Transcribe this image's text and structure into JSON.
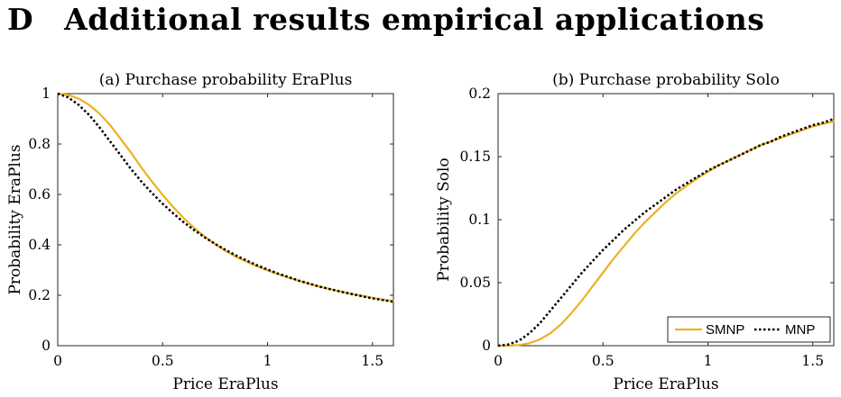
{
  "section": {
    "number": "D",
    "title": "Additional results empirical applications"
  },
  "chart_data": [
    {
      "type": "line",
      "title": "(a) Purchase probability EraPlus",
      "xlabel": "Price EraPlus",
      "ylabel": "Probability EraPlus",
      "xlim": [
        0,
        1.6
      ],
      "ylim": [
        0,
        1
      ],
      "xticks": [
        0,
        0.5,
        1,
        1.5
      ],
      "xtick_labels": [
        "0",
        "0.5",
        "1",
        "1.5"
      ],
      "yticks": [
        0,
        0.2,
        0.4,
        0.6,
        0.8,
        1
      ],
      "ytick_labels": [
        "0",
        "0.2",
        "0.4",
        "0.6",
        "0.8",
        "1"
      ],
      "grid": false,
      "series": [
        {
          "name": "SMNP",
          "color": "#EDB120",
          "style": "solid",
          "x": [
            0,
            0.05,
            0.1,
            0.15,
            0.2,
            0.25,
            0.3,
            0.35,
            0.4,
            0.45,
            0.5,
            0.55,
            0.6,
            0.65,
            0.7,
            0.75,
            0.8,
            0.85,
            0.9,
            0.95,
            1.0,
            1.05,
            1.1,
            1.15,
            1.2,
            1.25,
            1.3,
            1.35,
            1.4,
            1.45,
            1.5,
            1.55,
            1.6
          ],
          "y": [
            1.0,
            0.995,
            0.98,
            0.955,
            0.92,
            0.875,
            0.82,
            0.765,
            0.705,
            0.65,
            0.598,
            0.55,
            0.506,
            0.468,
            0.433,
            0.403,
            0.376,
            0.353,
            0.333,
            0.315,
            0.299,
            0.284,
            0.27,
            0.257,
            0.245,
            0.234,
            0.224,
            0.215,
            0.206,
            0.198,
            0.19,
            0.183,
            0.177
          ]
        },
        {
          "name": "MNP",
          "color": "#000000",
          "style": "dotted",
          "x": [
            0,
            0.05,
            0.1,
            0.15,
            0.2,
            0.25,
            0.3,
            0.35,
            0.4,
            0.45,
            0.5,
            0.55,
            0.6,
            0.65,
            0.7,
            0.75,
            0.8,
            0.85,
            0.9,
            0.95,
            1.0,
            1.05,
            1.1,
            1.15,
            1.2,
            1.25,
            1.3,
            1.35,
            1.4,
            1.45,
            1.5,
            1.55,
            1.6
          ],
          "y": [
            1.0,
            0.985,
            0.955,
            0.915,
            0.865,
            0.81,
            0.755,
            0.7,
            0.65,
            0.605,
            0.563,
            0.525,
            0.49,
            0.459,
            0.43,
            0.404,
            0.38,
            0.358,
            0.338,
            0.319,
            0.302,
            0.286,
            0.272,
            0.258,
            0.246,
            0.234,
            0.224,
            0.214,
            0.205,
            0.196,
            0.188,
            0.181,
            0.174
          ]
        }
      ]
    },
    {
      "type": "line",
      "title": "(b) Purchase probability Solo",
      "xlabel": "Price EraPlus",
      "ylabel": "Probability Solo",
      "xlim": [
        0,
        1.6
      ],
      "ylim": [
        0,
        0.2
      ],
      "xticks": [
        0,
        0.5,
        1,
        1.5
      ],
      "xtick_labels": [
        "0",
        "0.5",
        "1",
        "1.5"
      ],
      "yticks": [
        0,
        0.05,
        0.1,
        0.15,
        0.2
      ],
      "ytick_labels": [
        "0",
        "0.05",
        "0.1",
        "0.15",
        "0.2"
      ],
      "grid": false,
      "legend": {
        "placement": "bottom-right",
        "orientation": "horizontal",
        "entries": [
          "SMNP",
          "MNP"
        ]
      },
      "series": [
        {
          "name": "SMNP",
          "color": "#EDB120",
          "style": "solid",
          "x": [
            0,
            0.05,
            0.1,
            0.15,
            0.2,
            0.25,
            0.3,
            0.35,
            0.4,
            0.45,
            0.5,
            0.55,
            0.6,
            0.65,
            0.7,
            0.75,
            0.8,
            0.85,
            0.9,
            0.95,
            1.0,
            1.05,
            1.1,
            1.15,
            1.2,
            1.25,
            1.3,
            1.35,
            1.4,
            1.45,
            1.5,
            1.55,
            1.6
          ],
          "y": [
            0.0,
            0.0,
            0.0005,
            0.002,
            0.005,
            0.01,
            0.017,
            0.026,
            0.036,
            0.047,
            0.058,
            0.069,
            0.079,
            0.089,
            0.098,
            0.106,
            0.114,
            0.121,
            0.127,
            0.133,
            0.138,
            0.143,
            0.147,
            0.151,
            0.155,
            0.159,
            0.162,
            0.165,
            0.168,
            0.171,
            0.174,
            0.176,
            0.178
          ]
        },
        {
          "name": "MNP",
          "color": "#000000",
          "style": "dotted",
          "x": [
            0,
            0.05,
            0.1,
            0.15,
            0.2,
            0.25,
            0.3,
            0.35,
            0.4,
            0.45,
            0.5,
            0.55,
            0.6,
            0.65,
            0.7,
            0.75,
            0.8,
            0.85,
            0.9,
            0.95,
            1.0,
            1.05,
            1.1,
            1.15,
            1.2,
            1.25,
            1.3,
            1.35,
            1.4,
            1.45,
            1.5,
            1.55,
            1.6
          ],
          "y": [
            0.0,
            0.001,
            0.004,
            0.01,
            0.018,
            0.028,
            0.038,
            0.048,
            0.058,
            0.067,
            0.076,
            0.084,
            0.092,
            0.099,
            0.106,
            0.112,
            0.118,
            0.124,
            0.129,
            0.134,
            0.139,
            0.143,
            0.147,
            0.151,
            0.155,
            0.159,
            0.162,
            0.166,
            0.169,
            0.172,
            0.175,
            0.177,
            0.18
          ]
        }
      ]
    }
  ]
}
